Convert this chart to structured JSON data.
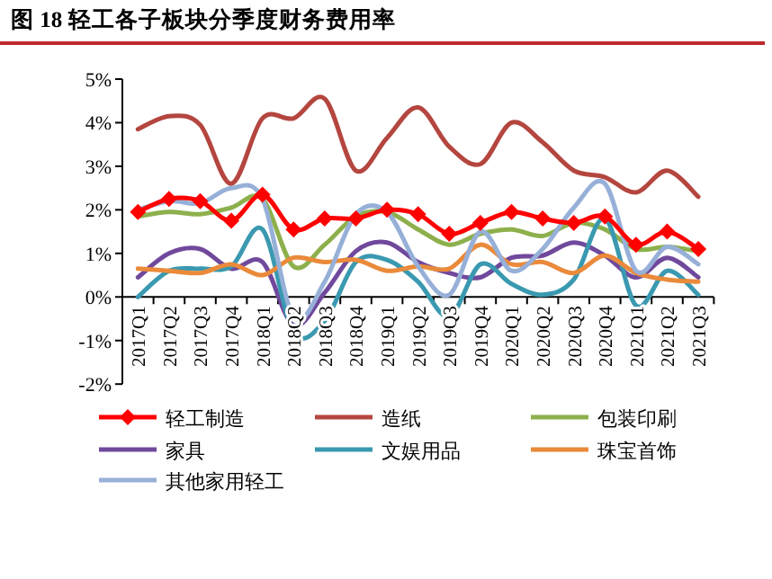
{
  "chart_data": {
    "type": "line",
    "title": "图 18 轻工各子板块分季度财务费用率",
    "categories": [
      "2017Q1",
      "2017Q2",
      "2017Q3",
      "2017Q4",
      "2018Q1",
      "2018Q2",
      "2018Q3",
      "2018Q4",
      "2019Q1",
      "2019Q2",
      "2019Q3",
      "2019Q4",
      "2020Q1",
      "2020Q2",
      "2020Q3",
      "2020Q4",
      "2021Q1",
      "2021Q2",
      "2021Q3"
    ],
    "ylim": [
      -2,
      5
    ],
    "yticks": [
      {
        "value": -2,
        "label": "-2%"
      },
      {
        "value": -1,
        "label": "-1%"
      },
      {
        "value": 0,
        "label": "0%"
      },
      {
        "value": 1,
        "label": "1%"
      },
      {
        "value": 2,
        "label": "2%"
      },
      {
        "value": 3,
        "label": "3%"
      },
      {
        "value": 4,
        "label": "4%"
      },
      {
        "value": 5,
        "label": "5%"
      }
    ],
    "grid": false,
    "legend": "bottom",
    "series": [
      {
        "name": "轻工制造",
        "color": "#ff0000",
        "marker": "diamond",
        "values": [
          1.95,
          2.25,
          2.2,
          1.75,
          2.35,
          1.55,
          1.8,
          1.8,
          2.0,
          1.9,
          1.45,
          1.7,
          1.95,
          1.8,
          1.7,
          1.85,
          1.2,
          1.5,
          1.1
        ]
      },
      {
        "name": "造纸",
        "color": "#b4463f",
        "values": [
          3.85,
          4.15,
          3.95,
          2.6,
          4.1,
          4.1,
          4.55,
          2.9,
          3.65,
          4.35,
          3.45,
          3.05,
          4.0,
          3.55,
          2.9,
          2.75,
          2.4,
          2.9,
          2.3
        ]
      },
      {
        "name": "包装印刷",
        "color": "#8db04c",
        "values": [
          1.85,
          1.95,
          1.9,
          2.05,
          2.25,
          0.7,
          1.2,
          1.85,
          1.95,
          1.55,
          1.2,
          1.45,
          1.55,
          1.4,
          1.7,
          1.55,
          1.1,
          1.15,
          1.05
        ]
      },
      {
        "name": "家具",
        "color": "#70499c",
        "values": [
          0.45,
          1.0,
          1.1,
          0.65,
          0.8,
          -0.65,
          0.1,
          1.05,
          1.25,
          0.8,
          0.55,
          0.45,
          0.9,
          0.95,
          1.25,
          0.95,
          0.45,
          0.9,
          0.45
        ]
      },
      {
        "name": "文娱用品",
        "color": "#3a99b0",
        "values": [
          0.0,
          0.6,
          0.65,
          0.7,
          1.55,
          -0.8,
          -0.55,
          0.8,
          0.85,
          0.35,
          -0.45,
          0.75,
          0.3,
          0.05,
          0.4,
          1.8,
          -0.2,
          0.6,
          0.05
        ]
      },
      {
        "name": "珠宝首饰",
        "color": "#ea8a3a",
        "values": [
          0.65,
          0.6,
          0.55,
          0.75,
          0.5,
          0.9,
          0.8,
          0.85,
          0.6,
          0.7,
          0.65,
          1.2,
          0.75,
          0.8,
          0.55,
          0.95,
          0.55,
          0.4,
          0.35
        ]
      },
      {
        "name": "其他家用轻工",
        "color": "#97b0d8",
        "values": [
          2.0,
          2.2,
          2.15,
          2.5,
          2.25,
          -0.45,
          0.35,
          1.9,
          1.95,
          0.7,
          0.05,
          1.5,
          0.6,
          1.1,
          2.05,
          2.6,
          0.6,
          1.15,
          0.75
        ]
      }
    ]
  }
}
